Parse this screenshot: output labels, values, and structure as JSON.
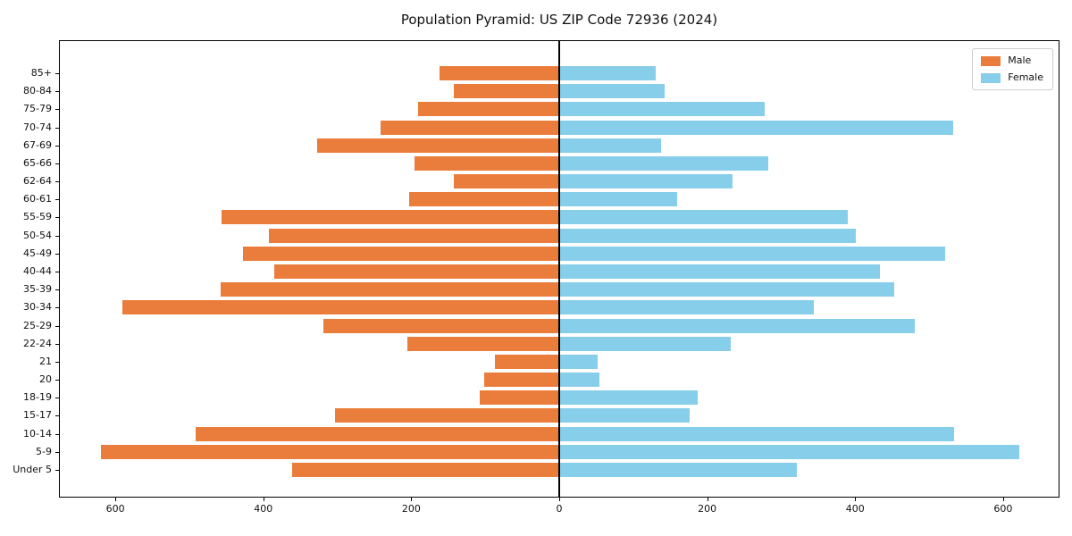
{
  "title": "Population Pyramid: US ZIP Code 72936 (2024)",
  "legend": {
    "male_label": "Male",
    "female_label": "Female",
    "position": "upper right"
  },
  "colors": {
    "male": "#EB7D3C",
    "female": "#87CEEB",
    "axis": "#000000",
    "legend_border": "#cccccc",
    "background": "#ffffff"
  },
  "chart_data": {
    "type": "bar",
    "subtype": "population-pyramid",
    "orientation": "horizontal",
    "title": "Population Pyramid: US ZIP Code 72936 (2024)",
    "xlabel": "",
    "ylabel": "",
    "grid": false,
    "zero_line": true,
    "legend_position": "upper right",
    "xlim": [
      -675,
      675
    ],
    "categories": [
      "85+",
      "80-84",
      "75-79",
      "70-74",
      "67-69",
      "65-66",
      "62-64",
      "60-61",
      "55-59",
      "50-54",
      "45-49",
      "40-44",
      "35-39",
      "30-34",
      "25-29",
      "22-24",
      "21",
      "20",
      "18-19",
      "15-17",
      "10-14",
      "5-9",
      "Under 5"
    ],
    "series": [
      {
        "name": "Male",
        "side": "left",
        "color": "#EB7D3C",
        "values": [
          162,
          142,
          191,
          242,
          327,
          196,
          142,
          203,
          457,
          392,
          428,
          385,
          458,
          590,
          319,
          205,
          87,
          102,
          108,
          303,
          491,
          619,
          361
        ]
      },
      {
        "name": "Female",
        "side": "right",
        "color": "#87CEEB",
        "values": [
          131,
          142,
          278,
          532,
          138,
          283,
          234,
          159,
          390,
          401,
          522,
          434,
          453,
          344,
          481,
          232,
          52,
          54,
          187,
          176,
          534,
          622,
          321
        ]
      }
    ],
    "x_ticks": [
      {
        "value": -600,
        "label": "600"
      },
      {
        "value": -400,
        "label": "400"
      },
      {
        "value": -200,
        "label": "200"
      },
      {
        "value": 0,
        "label": "0"
      },
      {
        "value": 200,
        "label": "200"
      },
      {
        "value": 400,
        "label": "400"
      },
      {
        "value": 600,
        "label": "600"
      }
    ]
  }
}
